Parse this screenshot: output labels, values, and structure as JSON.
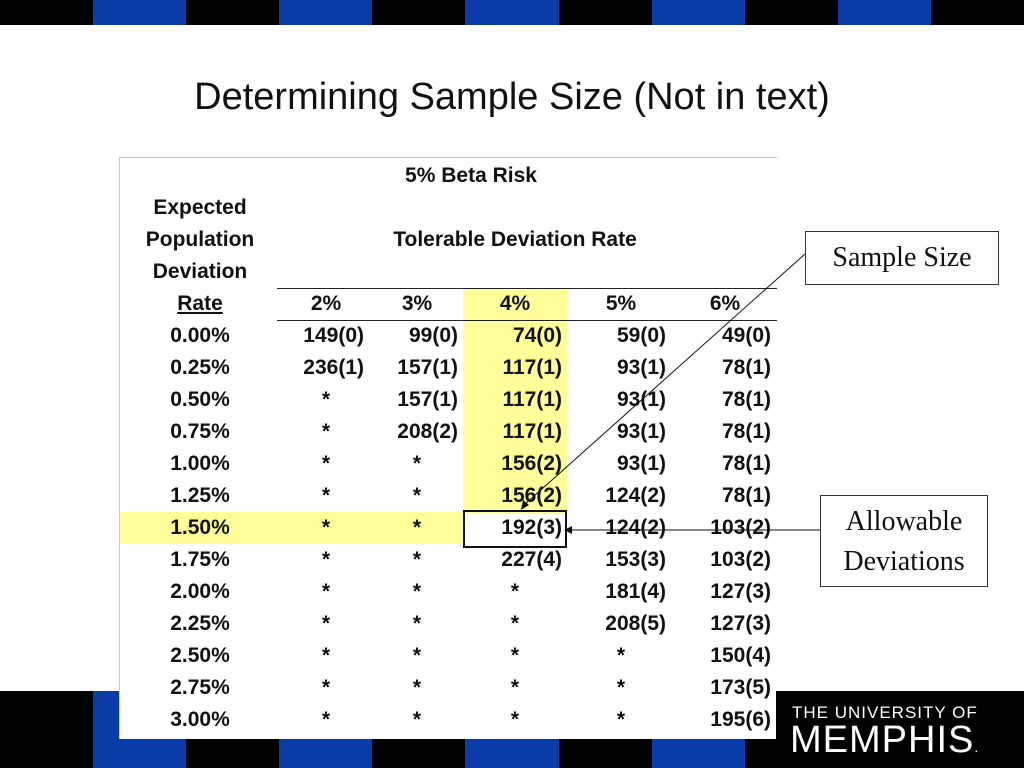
{
  "slide": {
    "title": "Determining Sample Size (Not in text)"
  },
  "table": {
    "beta_risk_header": "5% Beta Risk",
    "row_header_lines": [
      "Expected",
      "Population",
      "Deviation",
      "Rate"
    ],
    "column_group_header": "Tolerable Deviation Rate",
    "columns": [
      "2%",
      "3%",
      "4%",
      "5%",
      "6%"
    ],
    "highlight_column": "4%",
    "highlight_row": "1.50%",
    "boxed_cell": "192(3)",
    "rows": [
      {
        "rate": "0.00%",
        "cells": [
          "149(0)",
          "99(0)",
          "74(0)",
          "59(0)",
          "49(0)"
        ]
      },
      {
        "rate": "0.25%",
        "cells": [
          "236(1)",
          "157(1)",
          "117(1)",
          "93(1)",
          "78(1)"
        ]
      },
      {
        "rate": "0.50%",
        "cells": [
          "*",
          "157(1)",
          "117(1)",
          "93(1)",
          "78(1)"
        ]
      },
      {
        "rate": "0.75%",
        "cells": [
          "*",
          "208(2)",
          "117(1)",
          "93(1)",
          "78(1)"
        ]
      },
      {
        "rate": "1.00%",
        "cells": [
          "*",
          "*",
          "156(2)",
          "93(1)",
          "78(1)"
        ]
      },
      {
        "rate": "1.25%",
        "cells": [
          "*",
          "*",
          "156(2)",
          "124(2)",
          "78(1)"
        ]
      },
      {
        "rate": "1.50%",
        "cells": [
          "*",
          "*",
          "192(3)",
          "124(2)",
          "103(2)"
        ]
      },
      {
        "rate": "1.75%",
        "cells": [
          "*",
          "*",
          "227(4)",
          "153(3)",
          "103(2)"
        ]
      },
      {
        "rate": "2.00%",
        "cells": [
          "*",
          "*",
          "*",
          "181(4)",
          "127(3)"
        ]
      },
      {
        "rate": "2.25%",
        "cells": [
          "*",
          "*",
          "*",
          "208(5)",
          "127(3)"
        ]
      },
      {
        "rate": "2.50%",
        "cells": [
          "*",
          "*",
          "*",
          "*",
          "150(4)"
        ]
      },
      {
        "rate": "2.75%",
        "cells": [
          "*",
          "*",
          "*",
          "*",
          "173(5)"
        ]
      },
      {
        "rate": "3.00%",
        "cells": [
          "*",
          "*",
          "*",
          "*",
          "195(6)"
        ]
      }
    ]
  },
  "callouts": {
    "sample_size": "Sample Size",
    "allowable_deviations": [
      "Allowable",
      "Deviations"
    ]
  },
  "logo": {
    "line1": "THE UNIVERSITY OF",
    "line2": "MEMPHIS",
    "mark": "."
  },
  "colors": {
    "stripe_blue": "#0a3ca8",
    "stripe_black": "#000000",
    "highlight": "#ffff99"
  }
}
